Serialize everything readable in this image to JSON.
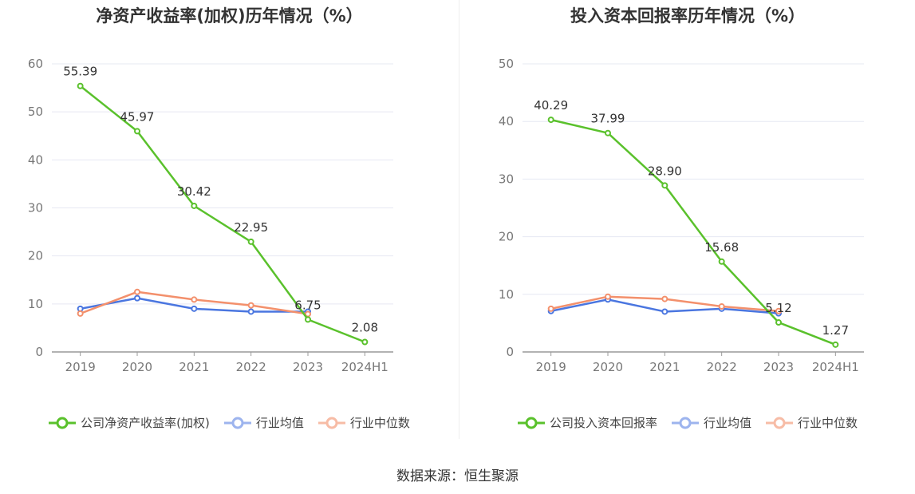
{
  "charts": [
    {
      "title": "净资产收益率(加权)历年情况（%）",
      "legend": [
        "公司净资产收益率(加权)",
        "行业均值",
        "行业中位数"
      ]
    },
    {
      "title": "投入资本回报率历年情况（%）",
      "legend": [
        "公司投入资本回报率",
        "行业均值",
        "行业中位数"
      ]
    }
  ],
  "source": "数据来源：恒生聚源",
  "colors": {
    "company": "#5ac12c",
    "avg": "#4a76e0",
    "median": "#f3906c",
    "grid": "#e6e8f2",
    "axis": "#999999"
  },
  "chart_data": [
    {
      "type": "line",
      "title": "净资产收益率(加权)历年情况（%）",
      "categories": [
        "2019",
        "2020",
        "2021",
        "2022",
        "2023",
        "2024H1"
      ],
      "ylim": [
        0,
        60
      ],
      "yticks": [
        0,
        10,
        20,
        30,
        40,
        50,
        60
      ],
      "grid": true,
      "legend_position": "bottom",
      "series": [
        {
          "name": "公司净资产收益率(加权)",
          "values": [
            55.39,
            45.97,
            30.42,
            22.95,
            6.75,
            2.08
          ],
          "labels": [
            "55.39",
            "45.97",
            "30.42",
            "22.95",
            "6.75",
            "2.08"
          ]
        },
        {
          "name": "行业均值",
          "values": [
            9.0,
            11.2,
            9.0,
            8.4,
            8.4,
            null
          ]
        },
        {
          "name": "行业中位数",
          "values": [
            8.0,
            12.5,
            10.9,
            9.7,
            7.9,
            null
          ]
        }
      ]
    },
    {
      "type": "line",
      "title": "投入资本回报率历年情况（%）",
      "categories": [
        "2019",
        "2020",
        "2021",
        "2022",
        "2023",
        "2024H1"
      ],
      "ylim": [
        0,
        50
      ],
      "yticks": [
        0,
        10,
        20,
        30,
        40,
        50
      ],
      "grid": true,
      "legend_position": "bottom",
      "series": [
        {
          "name": "公司投入资本回报率",
          "values": [
            40.29,
            37.99,
            28.9,
            15.68,
            5.12,
            1.27
          ],
          "labels": [
            "40.29",
            "37.99",
            "28.90",
            "15.68",
            "5.12",
            "1.27"
          ]
        },
        {
          "name": "行业均值",
          "values": [
            7.1,
            9.1,
            7.0,
            7.5,
            6.7,
            null
          ]
        },
        {
          "name": "行业中位数",
          "values": [
            7.5,
            9.6,
            9.2,
            7.9,
            7.1,
            null
          ]
        }
      ]
    }
  ]
}
